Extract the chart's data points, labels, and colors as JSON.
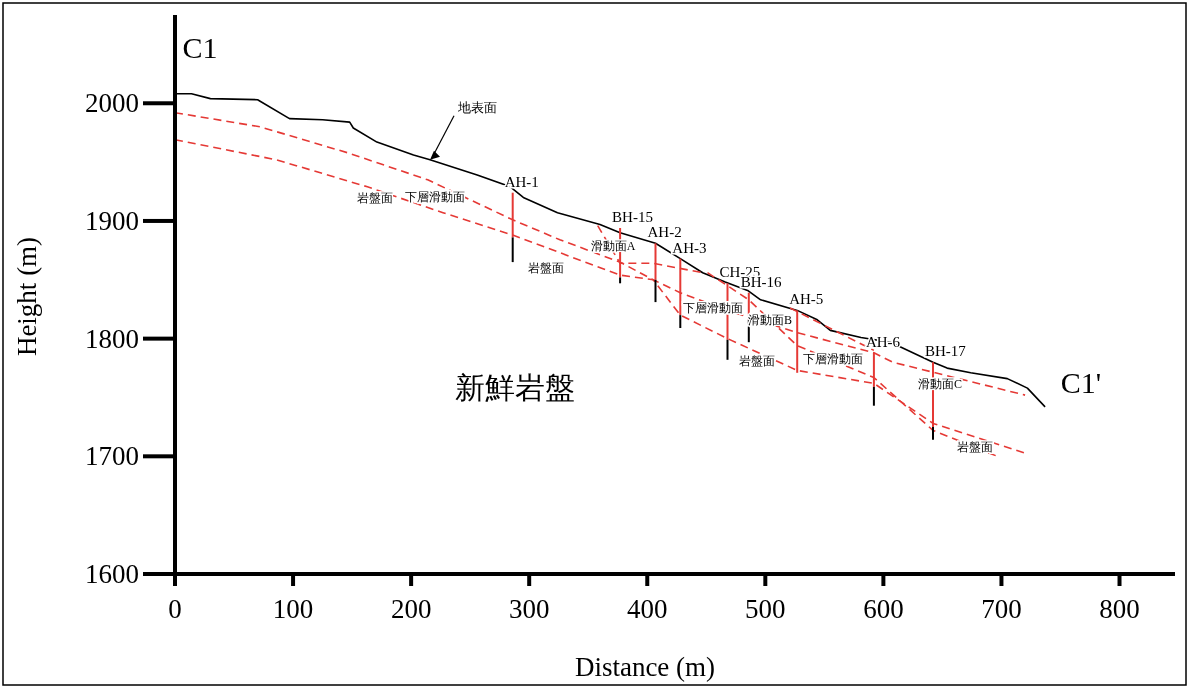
{
  "chart_data": {
    "type": "line",
    "xlabel": "Distance (m)",
    "ylabel": "Height (m)",
    "xlim": [
      0,
      847
    ],
    "ylim": [
      1600,
      2075
    ],
    "xticks": [
      0,
      100,
      200,
      300,
      400,
      500,
      600,
      700,
      800
    ],
    "yticks": [
      1600,
      1700,
      1800,
      1900,
      2000
    ],
    "grid": false,
    "legend": false,
    "marker": "none",
    "series": [
      {
        "type": "line",
        "color": "#000000",
        "line_style": "solid",
        "x": [
          0,
          14,
          30,
          70,
          97,
          125,
          148,
          151,
          171,
          202,
          216,
          256,
          284,
          295,
          324,
          360,
          377,
          407,
          428,
          447,
          466,
          485,
          496,
          527,
          544,
          555,
          581,
          606,
          642,
          654,
          674,
          705,
          722,
          737
        ],
        "values": [
          2008,
          2008,
          2004,
          2003,
          1987,
          1986,
          1984,
          1979,
          1967,
          1956,
          1952,
          1939,
          1929,
          1920,
          1907,
          1897,
          1890,
          1881,
          1868,
          1856,
          1848,
          1841,
          1833,
          1824,
          1816,
          1807,
          1801,
          1797,
          1780,
          1775,
          1771,
          1766,
          1758,
          1742
        ]
      },
      {
        "type": "line",
        "color": "#e53935",
        "line_style": "dashed",
        "x": [
          0,
          72,
          146,
          214,
          286,
          326,
          377,
          405,
          428,
          468,
          527,
          592,
          608,
          644,
          720
        ],
        "values": [
          1992,
          1980,
          1958,
          1935,
          1901,
          1884,
          1865,
          1850,
          1839,
          1824,
          1805,
          1788,
          1780,
          1771,
          1752
        ]
      },
      {
        "type": "line",
        "color": "#e53935",
        "line_style": "dashed",
        "x": [
          0,
          86,
          163,
          227,
          286,
          326,
          377,
          405,
          428,
          468,
          527,
          592,
          642,
          719
        ],
        "values": [
          1969,
          1952,
          1929,
          1907,
          1888,
          1873,
          1854,
          1850,
          1820,
          1800,
          1773,
          1762,
          1728,
          1703
        ]
      },
      {
        "type": "line",
        "color": "#e53935",
        "line_style": "dashed",
        "x": [
          358,
          377,
          405,
          447
        ],
        "values": [
          1896,
          1864,
          1864,
          1856
        ]
      },
      {
        "type": "line",
        "color": "#e53935",
        "line_style": "dashed",
        "x": [
          451,
          468,
          486,
          527,
          592,
          642,
          699
        ],
        "values": [
          1856,
          1845,
          1833,
          1794,
          1767,
          1722,
          1699
        ]
      },
      {
        "type": "line",
        "color": "#e53935",
        "line_style": "dashed",
        "x": [
          521,
          592
        ],
        "values": [
          1826,
          1790
        ]
      },
      {
        "type": "line",
        "name": "AH-1",
        "color": "#e53935",
        "line_style": "solid",
        "x": [
          286,
          286
        ],
        "values": [
          1924,
          1886
        ]
      },
      {
        "type": "line",
        "color": "#000000",
        "line_style": "solid",
        "x": [
          286,
          286
        ],
        "values": [
          1886,
          1865
        ]
      },
      {
        "type": "line",
        "name": "BH-15",
        "color": "#e53935",
        "line_style": "solid",
        "x": [
          377,
          377
        ],
        "values": [
          1894,
          1852
        ]
      },
      {
        "type": "line",
        "color": "#000000",
        "line_style": "solid",
        "x": [
          377,
          377
        ],
        "values": [
          1852,
          1847
        ]
      },
      {
        "type": "line",
        "name": "AH-2",
        "color": "#e53935",
        "line_style": "solid",
        "x": [
          407,
          407
        ],
        "values": [
          1881,
          1850
        ]
      },
      {
        "type": "line",
        "color": "#000000",
        "line_style": "solid",
        "x": [
          407,
          407
        ],
        "values": [
          1850,
          1831
        ]
      },
      {
        "type": "line",
        "name": "AH-3",
        "color": "#e53935",
        "line_style": "solid",
        "x": [
          428,
          428
        ],
        "values": [
          1868,
          1820
        ]
      },
      {
        "type": "line",
        "color": "#000000",
        "line_style": "solid",
        "x": [
          428,
          428
        ],
        "values": [
          1820,
          1809
        ]
      },
      {
        "type": "line",
        "name": "CH-25",
        "color": "#e53935",
        "line_style": "solid",
        "x": [
          468,
          468
        ],
        "values": [
          1847,
          1799
        ]
      },
      {
        "type": "line",
        "color": "#000000",
        "line_style": "solid",
        "x": [
          468,
          468
        ],
        "values": [
          1799,
          1782
        ]
      },
      {
        "type": "line",
        "name": "BH-16",
        "color": "#e53935",
        "line_style": "solid",
        "x": [
          486,
          486
        ],
        "values": [
          1839,
          1816
        ]
      },
      {
        "type": "line",
        "color": "#000000",
        "line_style": "solid",
        "x": [
          486,
          486
        ],
        "values": [
          1816,
          1797
        ]
      },
      {
        "type": "line",
        "name": "AH-5",
        "color": "#e53935",
        "line_style": "solid",
        "x": [
          527,
          527
        ],
        "values": [
          1824,
          1771
        ]
      },
      {
        "type": "line",
        "name": "AH-6",
        "color": "#e53935",
        "line_style": "solid",
        "x": [
          592,
          592
        ],
        "values": [
          1788,
          1759
        ]
      },
      {
        "type": "line",
        "color": "#000000",
        "line_style": "solid",
        "x": [
          592,
          592
        ],
        "values": [
          1759,
          1743
        ]
      },
      {
        "type": "line",
        "name": "BH-17",
        "color": "#e53935",
        "line_style": "solid",
        "x": [
          642,
          642
        ],
        "values": [
          1780,
          1725
        ]
      },
      {
        "type": "line",
        "color": "#000000",
        "line_style": "solid",
        "x": [
          642,
          642
        ],
        "values": [
          1725,
          1714
        ]
      }
    ],
    "annotations": [
      "C1",
      "C1'",
      {
        "text": "地表面",
        "x": 216,
        "y": 1952
      },
      "岩盤面",
      "下層滑動面",
      "岩盤面",
      {
        "text": "滑動面A",
        "x": 371,
        "y": 1879
      },
      {
        "text": "下層滑動面",
        "x": 456,
        "y": 1826
      },
      {
        "text": "滑動面B",
        "x": 504,
        "y": 1816
      },
      "岩盤面",
      {
        "text": "下層滑動面",
        "x": 557,
        "y": 1783
      },
      "滑動面C",
      {
        "text": "岩盤面",
        "x": 678,
        "y": 1708
      },
      "新鮮岩盤"
    ]
  }
}
